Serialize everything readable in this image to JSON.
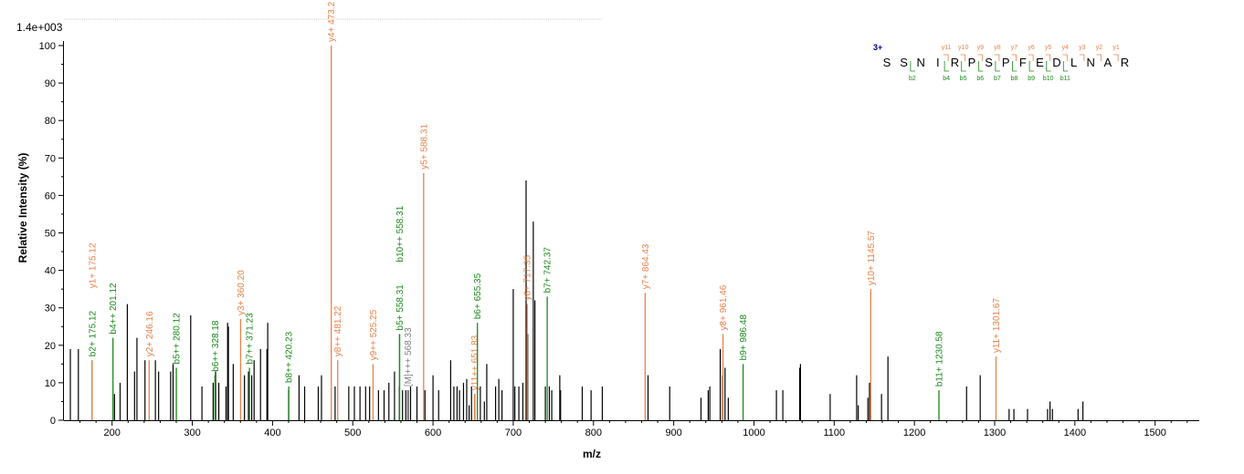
{
  "chart_data": {
    "type": "bar",
    "scale_label": "1.4e+003",
    "xlabel": "m/z",
    "ylabel": "Relative   Intensity (%)",
    "xlim": [
      140,
      1555
    ],
    "ylim": [
      0,
      100
    ],
    "xticks": [
      200,
      300,
      400,
      500,
      600,
      700,
      800,
      900,
      1000,
      1100,
      1200,
      1300,
      1400,
      1500
    ],
    "yticks": [
      0,
      10,
      20,
      30,
      40,
      50,
      60,
      70,
      80,
      90,
      100
    ],
    "colors": {
      "y": "#e8824a",
      "b": "#1a8a1a",
      "other": "#000000",
      "precursor": "#808080",
      "charge": "#00008b"
    },
    "peaks": [
      [
        148,
        19
      ],
      [
        158,
        19
      ],
      [
        203,
        7
      ],
      [
        210,
        10
      ],
      [
        219,
        31
      ],
      [
        228,
        13
      ],
      [
        231,
        22
      ],
      [
        241,
        16
      ],
      [
        254,
        16
      ],
      [
        258,
        13
      ],
      [
        273,
        13
      ],
      [
        276,
        15
      ],
      [
        298,
        28
      ],
      [
        312,
        9
      ],
      [
        326,
        10
      ],
      [
        329,
        13
      ],
      [
        333,
        10
      ],
      [
        342,
        9
      ],
      [
        344,
        26
      ],
      [
        345,
        25
      ],
      [
        351,
        15
      ],
      [
        365,
        12
      ],
      [
        370,
        13
      ],
      [
        374,
        12
      ],
      [
        377,
        16
      ],
      [
        385,
        19
      ],
      [
        393,
        19
      ],
      [
        394,
        26
      ],
      [
        420,
        8
      ],
      [
        433,
        12
      ],
      [
        440,
        9
      ],
      [
        457,
        9
      ],
      [
        461,
        12
      ],
      [
        478,
        9
      ],
      [
        495,
        9
      ],
      [
        502,
        9
      ],
      [
        509,
        9
      ],
      [
        516,
        9
      ],
      [
        521,
        9
      ],
      [
        532,
        8
      ],
      [
        539,
        8
      ],
      [
        545,
        10
      ],
      [
        552,
        13
      ],
      [
        558,
        9
      ],
      [
        562,
        8
      ],
      [
        566,
        8
      ],
      [
        569,
        8
      ],
      [
        572,
        9
      ],
      [
        580,
        9
      ],
      [
        590,
        8
      ],
      [
        600,
        12
      ],
      [
        607,
        8
      ],
      [
        622,
        16
      ],
      [
        626,
        9
      ],
      [
        630,
        9
      ],
      [
        633,
        8
      ],
      [
        638,
        10
      ],
      [
        642,
        11
      ],
      [
        645,
        4
      ],
      [
        648,
        9
      ],
      [
        652,
        7
      ],
      [
        659,
        9
      ],
      [
        664,
        5
      ],
      [
        667,
        15
      ],
      [
        678,
        9
      ],
      [
        682,
        11
      ],
      [
        686,
        8
      ],
      [
        700,
        35
      ],
      [
        702,
        9
      ],
      [
        707,
        9
      ],
      [
        712,
        10
      ],
      [
        716,
        64
      ],
      [
        718,
        23
      ],
      [
        725,
        53
      ],
      [
        727,
        32
      ],
      [
        740,
        9
      ],
      [
        745,
        9
      ],
      [
        748,
        8
      ],
      [
        758,
        12
      ],
      [
        759,
        8
      ],
      [
        786,
        9
      ],
      [
        797,
        8
      ],
      [
        811,
        9
      ],
      [
        868,
        12
      ],
      [
        895,
        9
      ],
      [
        934,
        6
      ],
      [
        943,
        8
      ],
      [
        945,
        9
      ],
      [
        958,
        19
      ],
      [
        961,
        12
      ],
      [
        964,
        14
      ],
      [
        968,
        6
      ],
      [
        1028,
        8
      ],
      [
        1036,
        8
      ],
      [
        1057,
        14
      ],
      [
        1058,
        15
      ],
      [
        1095,
        7
      ],
      [
        1128,
        12
      ],
      [
        1130,
        4
      ],
      [
        1142,
        6
      ],
      [
        1144,
        10
      ],
      [
        1159,
        7
      ],
      [
        1167,
        17
      ],
      [
        1265,
        9
      ],
      [
        1282,
        12
      ],
      [
        1318,
        3
      ],
      [
        1324,
        3
      ],
      [
        1341,
        3
      ],
      [
        1366,
        3
      ],
      [
        1369,
        5
      ],
      [
        1372,
        3
      ],
      [
        1404,
        3
      ],
      [
        1410,
        5
      ]
    ],
    "annotations": [
      {
        "mz": 175.12,
        "h": 16,
        "label": "b2+ 175.12",
        "cls": "b",
        "lab": 2
      },
      {
        "mz": 175.12,
        "h": 16,
        "label": "y1+ 175.12",
        "cls": "y",
        "lab": 2,
        "stack": 1
      },
      {
        "mz": 201.12,
        "h": 22,
        "label": "b4++ 201.12",
        "cls": "b",
        "lab": 2
      },
      {
        "mz": 246.16,
        "h": 16,
        "label": "y2+ 246.16",
        "cls": "y",
        "lab": 2
      },
      {
        "mz": 280.12,
        "h": 14,
        "label": "b5++ 280.12",
        "cls": "b",
        "lab": 2
      },
      {
        "mz": 328.18,
        "h": 12,
        "label": "b6++ 328.18",
        "cls": "b",
        "lab": 2
      },
      {
        "mz": 360.2,
        "h": 27,
        "label": "y3+ 360.20",
        "cls": "y",
        "lab": 2
      },
      {
        "mz": 371.23,
        "h": 14,
        "label": "b7++ 371.23",
        "cls": "b",
        "lab": 2
      },
      {
        "mz": 420.23,
        "h": 9,
        "label": "b8++ 420.23",
        "cls": "b",
        "lab": 2
      },
      {
        "mz": 473.2,
        "h": 100,
        "label": "y4+ 473.2",
        "cls": "y",
        "lab": 2
      },
      {
        "mz": 481.22,
        "h": 16,
        "label": "y8++ 481.22",
        "cls": "y",
        "lab": 2
      },
      {
        "mz": 525.25,
        "h": 15,
        "label": "y9++ 525.25",
        "cls": "y",
        "lab": 2
      },
      {
        "mz": 558.31,
        "h": 23,
        "label": "b5+ 558.31",
        "cls": "b",
        "lab": 2
      },
      {
        "mz": 558.31,
        "h": 23,
        "label": "b10++ 558.31",
        "cls": "b",
        "lab": 2,
        "stack": 1
      },
      {
        "mz": 568.33,
        "h": 8,
        "label": "[M]+++ 568.33",
        "cls": "precursor",
        "lab": 2
      },
      {
        "mz": 588.31,
        "h": 66,
        "label": "y5+ 588.31",
        "cls": "y",
        "lab": 2
      },
      {
        "mz": 651.83,
        "h": 7,
        "label": "y11++ 651.83",
        "cls": "y",
        "lab": 2
      },
      {
        "mz": 655.35,
        "h": 26,
        "label": "b6+ 655.35",
        "cls": "b",
        "lab": 2
      },
      {
        "mz": 717.35,
        "h": 31,
        "label": "y6+ 717.35",
        "cls": "y",
        "lab": 2
      },
      {
        "mz": 742.37,
        "h": 33,
        "label": "b7+ 742.37",
        "cls": "b",
        "lab": 2
      },
      {
        "mz": 864.43,
        "h": 34,
        "label": "y7+ 864.43",
        "cls": "y",
        "lab": 2
      },
      {
        "mz": 961.46,
        "h": 23,
        "label": "y8+ 961.46",
        "cls": "y",
        "lab": 2
      },
      {
        "mz": 986.48,
        "h": 15,
        "label": "b9+ 986.48",
        "cls": "b",
        "lab": 2
      },
      {
        "mz": 1145.57,
        "h": 35,
        "label": "y10+ 1145.57",
        "cls": "y",
        "lab": 2
      },
      {
        "mz": 1230.58,
        "h": 8,
        "label": "b11+ 1230.58",
        "cls": "b",
        "lab": 2
      },
      {
        "mz": 1301.67,
        "h": 17,
        "label": "y11+ 1301.67",
        "cls": "y",
        "lab": 2
      }
    ]
  },
  "sequence": {
    "charge": "3+",
    "letters": [
      "S",
      "S",
      "N",
      "I",
      "R",
      "P",
      "S",
      "P",
      "F",
      "E",
      "D",
      "L",
      "N",
      "A",
      "R"
    ],
    "y_labels": [
      "y11",
      "y10",
      "y9",
      "y8",
      "y7",
      "y6",
      "y5",
      "y4",
      "y3",
      "y2",
      "y1"
    ],
    "b_labels": [
      "b2",
      "b4",
      "b5",
      "b6",
      "b7",
      "b8",
      "b9",
      "b10",
      "b11"
    ]
  }
}
